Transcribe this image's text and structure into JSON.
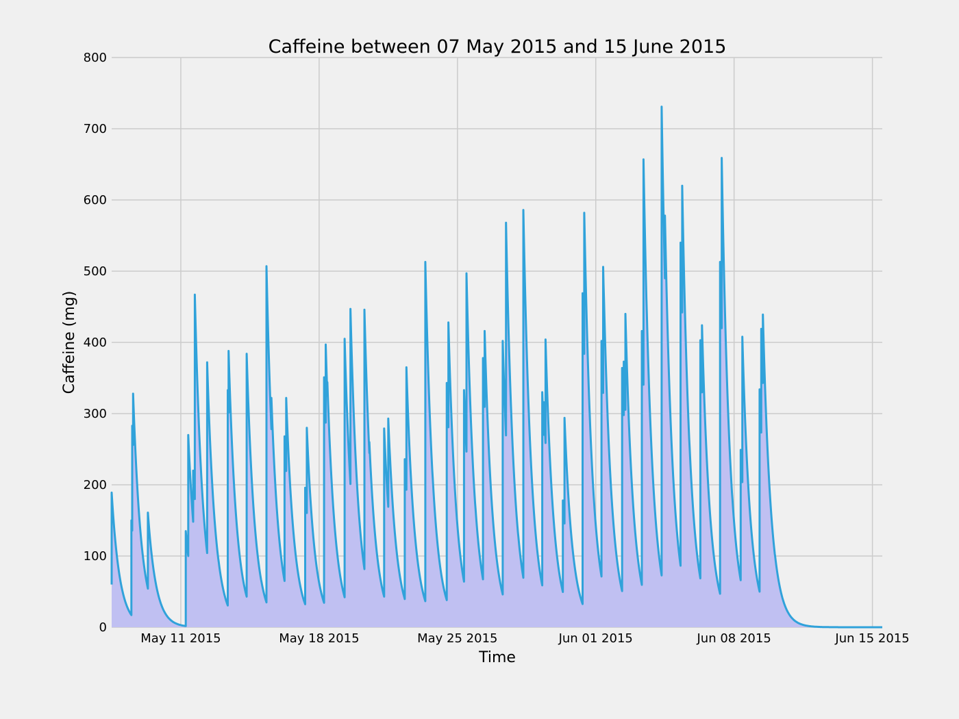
{
  "chart_data": {
    "type": "area",
    "title": "Caffeine between 07 May 2015 and 15 June 2015",
    "xlabel": "Time",
    "ylabel": "Caffeine (mg)",
    "x_range": [
      "2015-05-07T12:00",
      "2015-06-15T12:00"
    ],
    "ylim": [
      0,
      800
    ],
    "yticks": [
      0,
      100,
      200,
      300,
      400,
      500,
      600,
      700,
      800
    ],
    "xticks": [
      {
        "date": "2015-05-11",
        "label": "May 11 2015"
      },
      {
        "date": "2015-05-18",
        "label": "May 18 2015"
      },
      {
        "date": "2015-05-25",
        "label": "May 25 2015"
      },
      {
        "date": "2015-06-01",
        "label": "Jun 01 2015"
      },
      {
        "date": "2015-06-08",
        "label": "Jun 08 2015"
      },
      {
        "date": "2015-06-15",
        "label": "Jun 15 2015"
      }
    ],
    "grid": true,
    "colors": {
      "line": "#30a2da",
      "fill": "#c0c0f2",
      "grid": "#cbcbcb",
      "background": "#f0f0f0"
    },
    "series": [
      {
        "x": [
          "2015-05-07T12:00",
          "2015-05-07T14:00",
          "2015-05-08T12:00",
          "2015-05-08T13:00",
          "2015-05-08T14:00",
          "2015-05-09T08:00",
          "2015-05-10T09:00",
          "2015-05-11T06:00",
          "2015-05-11T09:00",
          "2015-05-11T15:00",
          "2015-05-11T17:00",
          "2015-05-11T19:00",
          "2015-05-12T08:00",
          "2015-05-12T09:00",
          "2015-05-13T09:00",
          "2015-05-13T10:00",
          "2015-05-14T08:00",
          "2015-05-14T10:00",
          "2015-05-15T08:00",
          "2015-05-15T10:00",
          "2015-05-15T14:00",
          "2015-05-16T06:00",
          "2015-05-16T08:00",
          "2015-05-16T10:00",
          "2015-05-17T07:00",
          "2015-05-17T09:00",
          "2015-05-18T06:00",
          "2015-05-18T08:00",
          "2015-05-18T10:00",
          "2015-05-19T07:00",
          "2015-05-19T09:00",
          "2015-05-19T14:00",
          "2015-05-20T07:00",
          "2015-05-20T09:00",
          "2015-05-20T13:00",
          "2015-05-21T07:00",
          "2015-05-21T09:00",
          "2015-05-21T12:00",
          "2015-05-22T08:00",
          "2015-05-22T10:00",
          "2015-05-23T09:00",
          "2015-05-23T10:00",
          "2015-05-24T11:00",
          "2015-05-24T13:00",
          "2015-05-25T08:00",
          "2015-05-25T11:00",
          "2015-05-25T14:00",
          "2015-05-26T07:00",
          "2015-05-26T09:00",
          "2015-05-26T11:00",
          "2015-05-27T07:00",
          "2015-05-27T09:00",
          "2015-05-27T11:00",
          "2015-05-28T08:00",
          "2015-05-28T10:00",
          "2015-05-28T12:00",
          "2015-05-29T07:00",
          "2015-05-29T09:00",
          "2015-05-29T11:00",
          "2015-05-30T08:00",
          "2015-05-30T10:00",
          "2015-05-31T08:00",
          "2015-05-31T10:00",
          "2015-06-01T07:00",
          "2015-06-01T09:00",
          "2015-06-02T08:00",
          "2015-06-02T10:00",
          "2015-06-02T12:00",
          "2015-06-03T08:00",
          "2015-06-03T10:00",
          "2015-06-04T08:00",
          "2015-06-04T10:00",
          "2015-06-04T12:00",
          "2015-06-05T07:00",
          "2015-06-05T09:00",
          "2015-06-05T11:00",
          "2015-06-06T07:00",
          "2015-06-06T09:00",
          "2015-06-07T07:00",
          "2015-06-07T09:00",
          "2015-06-07T11:00",
          "2015-06-08T08:00",
          "2015-06-08T10:00",
          "2015-06-09T07:00",
          "2015-06-09T09:00",
          "2015-06-09T11:00",
          "2015-06-10T07:00",
          "2015-06-10T09:00",
          "2015-06-11T07:00",
          "2015-06-11T09:00",
          "2015-06-11T11:00",
          "2015-06-12T07:00",
          "2015-06-12T09:00",
          "2015-06-13T08:00",
          "2015-06-13T10:00",
          "2015-06-14T07:00",
          "2015-06-14T09:00",
          "2015-06-15T07:00",
          "2015-06-15T09:00",
          "2015-06-15T11:00"
        ],
        "y": [
          189,
          120,
          150,
          283,
          328,
          161,
          0,
          135,
          270,
          220,
          467,
          300,
          372,
          158,
          333,
          388,
          384,
          315,
          507,
          210,
          322,
          268,
          322,
          235,
          196,
          280,
          351,
          397,
          344,
          405,
          0,
          447,
          446,
          177,
          260,
          279,
          226,
          293,
          236,
          365,
          513,
          287,
          343,
          428,
          333,
          497,
          0,
          378,
          416,
          164,
          402,
          321,
          568,
          586,
          276,
          370,
          330,
          316,
          404,
          178,
          294,
          469,
          582,
          402,
          506,
          364,
          373,
          440,
          416,
          657,
          731,
          443,
          578,
          540,
          620,
          0,
          403,
          424,
          513,
          659,
          0,
          249,
          408,
          334,
          419,
          439,
          0,
          0,
          0,
          0,
          0,
          0,
          0,
          0,
          0,
          0,
          0,
          0,
          0,
          0
        ]
      }
    ]
  }
}
